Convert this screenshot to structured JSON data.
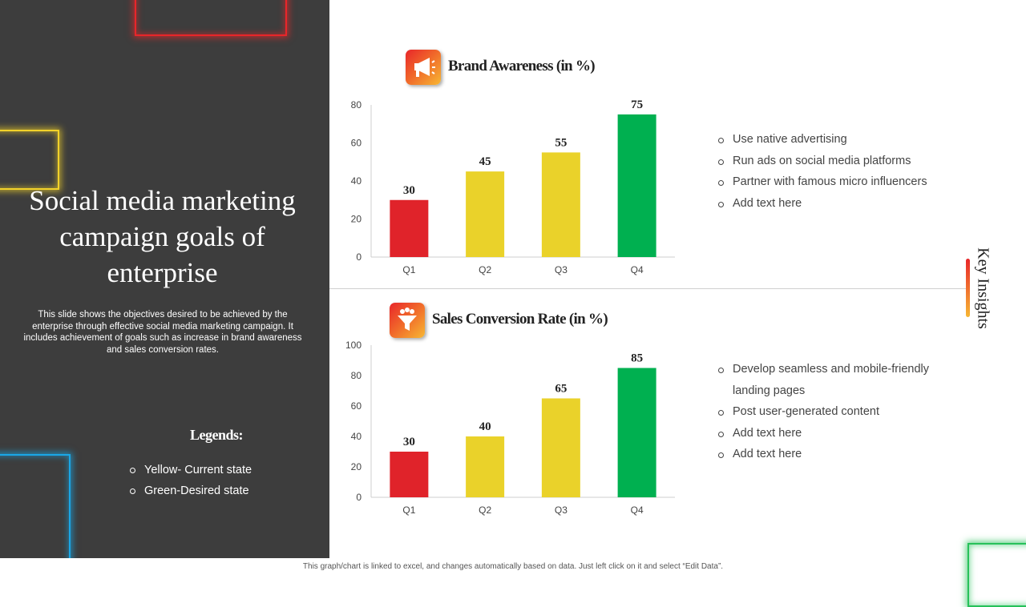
{
  "slide": {
    "title": "Social media marketing campaign goals of enterprise",
    "description": "This slide shows the objectives desired to be achieved by the enterprise through effective social media marketing campaign. It includes achievement of goals such as increase in brand awareness and sales conversion rates.",
    "legends_heading": "Legends:",
    "legend_items": [
      "Yellow- Current state",
      "Green-Desired state"
    ],
    "key_insights_label": "Key Insights",
    "footer": "This graph/chart is linked to excel, and changes automatically based on data. Just left click on it and select “Edit Data”."
  },
  "icons": {
    "brand": "megaphone-icon",
    "sales": "funnel-icon"
  },
  "colors": {
    "panel": "#3d3d3d",
    "red": "#e0232a",
    "yellow": "#ead22a",
    "green": "#00b050",
    "neon_red": "#e8262a",
    "neon_yellow": "#f2d22a",
    "neon_blue": "#1aa7e6",
    "neon_green": "#27c15a"
  },
  "chart_data": [
    {
      "type": "bar",
      "title": "Brand Awareness (in %)",
      "categories": [
        "Q1",
        "Q2",
        "Q3",
        "Q4"
      ],
      "values": [
        30,
        45,
        55,
        75
      ],
      "bar_colors": [
        "#e0232a",
        "#ead22a",
        "#ead22a",
        "#00b050"
      ],
      "ylim": [
        0,
        80
      ],
      "yticks": [
        0,
        20,
        40,
        60,
        80
      ],
      "xlabel": "",
      "ylabel": "",
      "grid": false
    },
    {
      "type": "bar",
      "title": "Sales Conversion Rate (in %)",
      "categories": [
        "Q1",
        "Q2",
        "Q3",
        "Q4"
      ],
      "values": [
        30,
        40,
        65,
        85
      ],
      "bar_colors": [
        "#e0232a",
        "#ead22a",
        "#ead22a",
        "#00b050"
      ],
      "ylim": [
        0,
        100
      ],
      "yticks": [
        0,
        20,
        40,
        60,
        80,
        100
      ],
      "xlabel": "",
      "ylabel": "",
      "grid": false
    }
  ],
  "insights": {
    "brand": [
      "Use native advertising",
      "Run ads on social media platforms",
      "Partner with famous micro influencers",
      "Add text here"
    ],
    "sales": [
      "Develop seamless and mobile-friendly landing pages",
      "Post user-generated content",
      "Add text here",
      "Add text here"
    ]
  }
}
